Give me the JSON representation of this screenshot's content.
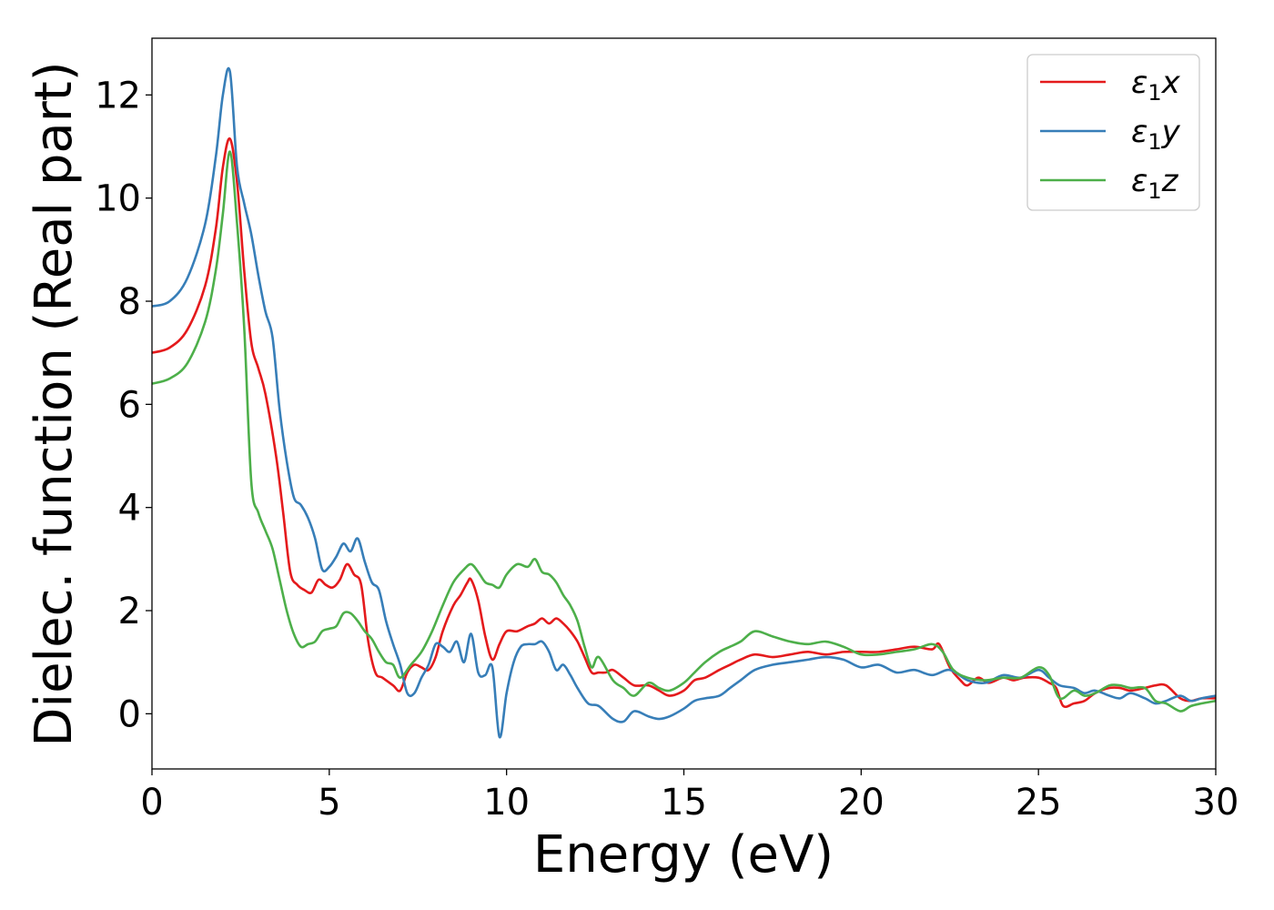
{
  "chart_data": {
    "type": "line",
    "xlabel": "Energy (eV)",
    "ylabel": "Dielec. function (Real part)",
    "xlim": [
      0,
      30
    ],
    "ylim": [
      -1.07,
      13.1
    ],
    "xticks": [
      0,
      5,
      10,
      15,
      20,
      25,
      30
    ],
    "yticks": [
      0,
      2,
      4,
      6,
      8,
      10,
      12
    ],
    "grid": false,
    "legend_position": "top-right",
    "series": [
      {
        "name": "ε1x",
        "legend_base": "ε",
        "legend_sub": "1",
        "legend_var": "x",
        "color": "#e41a1c",
        "x": [
          0,
          0.5,
          1.0,
          1.5,
          1.8,
          2.0,
          2.2,
          2.4,
          2.6,
          2.8,
          3.0,
          3.2,
          3.5,
          3.7,
          3.9,
          4.1,
          4.3,
          4.5,
          4.7,
          4.9,
          5.1,
          5.3,
          5.5,
          5.7,
          5.9,
          6.1,
          6.3,
          6.5,
          6.8,
          7.0,
          7.2,
          7.4,
          7.6,
          7.8,
          8.0,
          8.2,
          8.5,
          8.7,
          8.9,
          9.0,
          9.2,
          9.4,
          9.6,
          9.8,
          10.0,
          10.3,
          10.6,
          10.8,
          11.0,
          11.2,
          11.4,
          11.6,
          11.8,
          12.0,
          12.2,
          12.4,
          12.6,
          12.8,
          13.0,
          13.3,
          13.6,
          14.0,
          14.3,
          14.6,
          15.0,
          15.3,
          15.6,
          16.0,
          16.3,
          16.6,
          17.0,
          17.5,
          18.0,
          18.5,
          19.0,
          19.5,
          20.0,
          20.5,
          21.0,
          21.5,
          22.0,
          22.2,
          22.5,
          22.8,
          23.0,
          23.3,
          23.6,
          24.0,
          24.3,
          24.6,
          25.0,
          25.3,
          25.5,
          25.7,
          26.0,
          26.3,
          26.6,
          27.0,
          27.3,
          27.6,
          28.0,
          28.3,
          28.6,
          29.0,
          29.3,
          29.6,
          30.0
        ],
        "y": [
          7.0,
          7.1,
          7.45,
          8.3,
          9.4,
          10.6,
          11.15,
          10.3,
          8.6,
          7.2,
          6.7,
          6.2,
          5.0,
          3.9,
          2.75,
          2.5,
          2.4,
          2.35,
          2.6,
          2.5,
          2.45,
          2.6,
          2.9,
          2.7,
          2.5,
          1.4,
          0.8,
          0.7,
          0.55,
          0.45,
          0.8,
          0.95,
          0.9,
          0.85,
          1.1,
          1.6,
          2.1,
          2.3,
          2.55,
          2.6,
          2.2,
          1.5,
          1.05,
          1.35,
          1.6,
          1.6,
          1.7,
          1.75,
          1.85,
          1.75,
          1.85,
          1.75,
          1.6,
          1.4,
          1.1,
          0.8,
          0.8,
          0.8,
          0.85,
          0.7,
          0.55,
          0.55,
          0.45,
          0.35,
          0.45,
          0.65,
          0.7,
          0.85,
          0.95,
          1.05,
          1.15,
          1.1,
          1.15,
          1.2,
          1.15,
          1.2,
          1.2,
          1.2,
          1.25,
          1.3,
          1.25,
          1.35,
          0.9,
          0.65,
          0.55,
          0.7,
          0.6,
          0.7,
          0.65,
          0.7,
          0.7,
          0.6,
          0.5,
          0.15,
          0.2,
          0.25,
          0.4,
          0.5,
          0.5,
          0.45,
          0.5,
          0.55,
          0.55,
          0.3,
          0.25,
          0.3,
          0.3
        ]
      },
      {
        "name": "ε1y",
        "legend_base": "ε",
        "legend_sub": "1",
        "legend_var": "y",
        "color": "#377eb8",
        "x": [
          0,
          0.5,
          1.0,
          1.5,
          1.8,
          2.0,
          2.2,
          2.4,
          2.6,
          2.8,
          3.0,
          3.2,
          3.4,
          3.6,
          3.8,
          4.0,
          4.2,
          4.4,
          4.6,
          4.8,
          5.0,
          5.2,
          5.4,
          5.6,
          5.8,
          6.0,
          6.2,
          6.4,
          6.6,
          6.8,
          7.0,
          7.2,
          7.4,
          7.6,
          7.8,
          8.0,
          8.2,
          8.4,
          8.6,
          8.8,
          9.0,
          9.2,
          9.4,
          9.6,
          9.8,
          10.0,
          10.2,
          10.4,
          10.6,
          10.8,
          11.0,
          11.2,
          11.4,
          11.6,
          11.8,
          12.0,
          12.3,
          12.6,
          13.0,
          13.3,
          13.6,
          14.0,
          14.3,
          14.6,
          15.0,
          15.3,
          15.6,
          16.0,
          16.3,
          16.6,
          17.0,
          17.5,
          18.0,
          18.5,
          19.0,
          19.5,
          20.0,
          20.5,
          21.0,
          21.5,
          22.0,
          22.5,
          23.0,
          23.5,
          24.0,
          24.5,
          25.0,
          25.3,
          25.6,
          26.0,
          26.3,
          26.6,
          27.0,
          27.3,
          27.6,
          28.0,
          28.3,
          28.6,
          29.0,
          29.3,
          29.6,
          30.0
        ],
        "y": [
          7.9,
          8.0,
          8.45,
          9.5,
          10.8,
          12.0,
          12.45,
          10.6,
          9.9,
          9.3,
          8.5,
          7.8,
          7.3,
          5.9,
          4.9,
          4.2,
          4.05,
          3.8,
          3.4,
          2.8,
          2.85,
          3.05,
          3.3,
          3.15,
          3.4,
          2.95,
          2.55,
          2.4,
          1.8,
          1.35,
          0.95,
          0.4,
          0.4,
          0.7,
          0.95,
          1.35,
          1.3,
          1.2,
          1.4,
          1.0,
          1.55,
          0.8,
          0.75,
          0.9,
          -0.45,
          0.4,
          1.0,
          1.3,
          1.35,
          1.35,
          1.4,
          1.2,
          0.85,
          0.95,
          0.75,
          0.5,
          0.2,
          0.15,
          -0.1,
          -0.15,
          0.05,
          -0.05,
          -0.1,
          -0.05,
          0.1,
          0.25,
          0.3,
          0.35,
          0.5,
          0.65,
          0.85,
          0.95,
          1.0,
          1.05,
          1.1,
          1.05,
          0.9,
          0.95,
          0.8,
          0.85,
          0.75,
          0.85,
          0.65,
          0.6,
          0.75,
          0.7,
          0.85,
          0.7,
          0.55,
          0.5,
          0.4,
          0.45,
          0.35,
          0.3,
          0.4,
          0.3,
          0.2,
          0.25,
          0.35,
          0.25,
          0.3,
          0.35
        ]
      },
      {
        "name": "ε1z",
        "legend_base": "ε",
        "legend_sub": "1",
        "legend_var": "z",
        "color": "#4daf4a",
        "x": [
          0,
          0.5,
          1.0,
          1.5,
          1.8,
          2.0,
          2.2,
          2.4,
          2.6,
          2.8,
          3.0,
          3.2,
          3.4,
          3.6,
          3.8,
          4.0,
          4.2,
          4.4,
          4.6,
          4.8,
          5.0,
          5.2,
          5.4,
          5.6,
          5.8,
          6.0,
          6.2,
          6.4,
          6.6,
          6.8,
          7.0,
          7.3,
          7.6,
          7.9,
          8.2,
          8.5,
          8.8,
          9.0,
          9.2,
          9.4,
          9.6,
          9.8,
          10.0,
          10.3,
          10.6,
          10.8,
          11.0,
          11.2,
          11.4,
          11.6,
          11.8,
          12.0,
          12.2,
          12.4,
          12.6,
          13.0,
          13.3,
          13.6,
          14.0,
          14.3,
          14.6,
          15.0,
          15.3,
          15.6,
          16.0,
          16.3,
          16.6,
          17.0,
          17.5,
          18.0,
          18.5,
          19.0,
          19.5,
          20.0,
          20.5,
          21.0,
          21.5,
          22.0,
          22.3,
          22.6,
          23.0,
          23.5,
          24.0,
          24.5,
          25.0,
          25.3,
          25.6,
          26.0,
          26.3,
          26.6,
          27.0,
          27.3,
          27.6,
          28.0,
          28.3,
          28.6,
          29.0,
          29.3,
          29.6,
          30.0
        ],
        "y": [
          6.4,
          6.5,
          6.8,
          7.6,
          8.6,
          9.7,
          10.9,
          9.5,
          7.5,
          4.5,
          3.9,
          3.55,
          3.2,
          2.6,
          2.0,
          1.55,
          1.3,
          1.35,
          1.4,
          1.6,
          1.65,
          1.7,
          1.95,
          1.95,
          1.8,
          1.6,
          1.45,
          1.2,
          1.0,
          0.95,
          0.7,
          0.95,
          1.2,
          1.6,
          2.1,
          2.55,
          2.8,
          2.9,
          2.75,
          2.55,
          2.5,
          2.45,
          2.7,
          2.9,
          2.85,
          3.0,
          2.75,
          2.7,
          2.55,
          2.3,
          2.1,
          1.8,
          1.3,
          0.9,
          1.1,
          0.65,
          0.5,
          0.35,
          0.6,
          0.5,
          0.45,
          0.6,
          0.8,
          1.0,
          1.2,
          1.3,
          1.4,
          1.6,
          1.5,
          1.4,
          1.35,
          1.4,
          1.3,
          1.15,
          1.15,
          1.2,
          1.25,
          1.35,
          1.2,
          0.85,
          0.7,
          0.65,
          0.7,
          0.7,
          0.9,
          0.75,
          0.3,
          0.45,
          0.35,
          0.4,
          0.55,
          0.55,
          0.5,
          0.5,
          0.25,
          0.2,
          0.05,
          0.15,
          0.2,
          0.25
        ]
      }
    ]
  }
}
